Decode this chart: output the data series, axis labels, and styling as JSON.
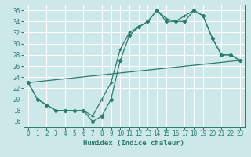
{
  "xlabel": "Humidex (Indice chaleur)",
  "bg_color": "#cce8e8",
  "grid_color": "#ffffff",
  "line_color": "#2d7b6e",
  "xlim": [
    -0.5,
    23.5
  ],
  "ylim": [
    15,
    37
  ],
  "yticks": [
    16,
    18,
    20,
    22,
    24,
    26,
    28,
    30,
    32,
    34,
    36
  ],
  "xticks": [
    0,
    1,
    2,
    3,
    4,
    5,
    6,
    7,
    8,
    9,
    10,
    11,
    12,
    13,
    14,
    15,
    16,
    17,
    18,
    19,
    20,
    21,
    22,
    23
  ],
  "line1_x": [
    0,
    1,
    2,
    3,
    4,
    5,
    6,
    7,
    8,
    9,
    10,
    11,
    12,
    13,
    14,
    15,
    16,
    17,
    18,
    19,
    20,
    21,
    22,
    23
  ],
  "line1_y": [
    23,
    20,
    19,
    18,
    18,
    18,
    18,
    16,
    17,
    20,
    27,
    31.5,
    33,
    34,
    36,
    34,
    34,
    34,
    36,
    35,
    31,
    28,
    28,
    27
  ],
  "line2_x": [
    0,
    1,
    2,
    3,
    4,
    5,
    6,
    7,
    8,
    9,
    10,
    11,
    12,
    13,
    14,
    15,
    16,
    17,
    18,
    19,
    20,
    21,
    22,
    23
  ],
  "line2_y": [
    23,
    20,
    19,
    18,
    18,
    18,
    18,
    17,
    20,
    23,
    29,
    32,
    33,
    34,
    36,
    34.5,
    34,
    35,
    36,
    35,
    31,
    28,
    28,
    27
  ],
  "line3_x": [
    0,
    23
  ],
  "line3_y": [
    23,
    27
  ]
}
